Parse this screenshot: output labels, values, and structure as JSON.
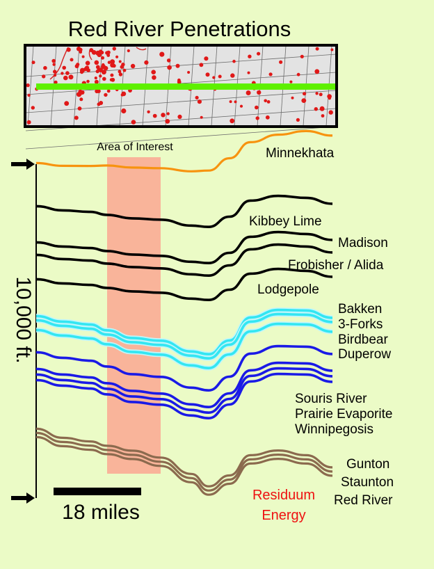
{
  "title": "Red River Penetrations",
  "area_label": "Area of Interest",
  "depth_label": "10,000 ft.",
  "scale_label": "18 miles",
  "credit": {
    "line1": "Residuum",
    "line2": "Energy"
  },
  "colors": {
    "background": "#ebfbc6",
    "orange": "#f7930f",
    "black": "#000000",
    "cyan": "#33e6f2",
    "blue": "#1a1ae6",
    "brown": "#8b6a4e",
    "highlight": "#f9b49a",
    "section_line": "#5ef000",
    "well_dot": "#e01818",
    "credit": "#ee1111"
  },
  "formations": [
    {
      "label": "Minnekhata",
      "color": "orange"
    },
    {
      "label": "Kibbey Lime",
      "color": "black"
    },
    {
      "label": "Madison",
      "color": "black"
    },
    {
      "label": "Frobisher / Alida",
      "color": "black"
    },
    {
      "label": "Lodgepole",
      "color": "black"
    },
    {
      "label": "Bakken",
      "color": "cyan"
    },
    {
      "label": "3-Forks",
      "color": "cyan"
    },
    {
      "label": "Birdbear",
      "color": "cyan"
    },
    {
      "label": "Duperow",
      "color": "blue"
    },
    {
      "label": "Souris River",
      "color": "blue"
    },
    {
      "label": "Prairie Evaporite",
      "color": "blue"
    },
    {
      "label": "Winnipegosis",
      "color": "blue"
    },
    {
      "label": "Gunton",
      "color": "brown"
    },
    {
      "label": "Staunton",
      "color": "brown"
    },
    {
      "label": "Red River",
      "color": "brown"
    }
  ]
}
